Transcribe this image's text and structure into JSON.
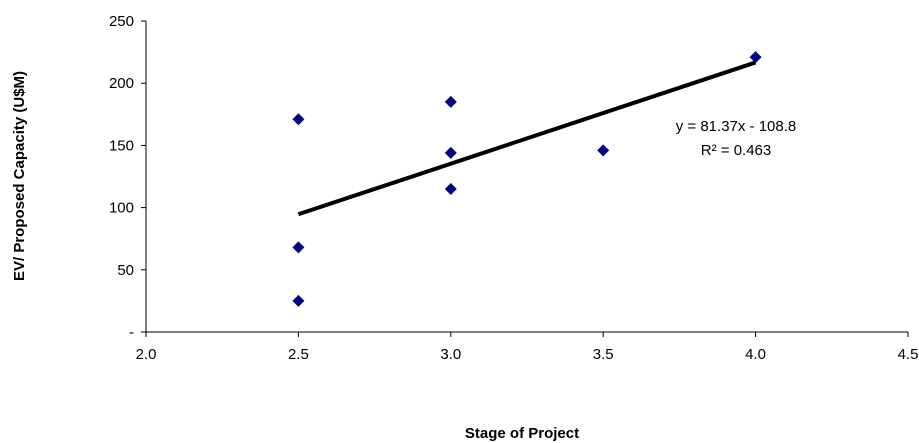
{
  "chart_data": {
    "type": "scatter",
    "title": "",
    "xlabel": "Stage of Project",
    "ylabel": "EV/ Proposed Capacity (U$M)",
    "xlim": [
      2.0,
      4.5
    ],
    "ylim": [
      0,
      250
    ],
    "x_ticks": [
      "2.0",
      "2.5",
      "3.0",
      "3.5",
      "4.0",
      "4.5"
    ],
    "y_ticks": [
      "-",
      "50",
      "100",
      "150",
      "200",
      "250"
    ],
    "grid": false,
    "legend": "none",
    "series": [
      {
        "points": [
          {
            "x": 2.5,
            "y": 171
          },
          {
            "x": 2.5,
            "y": 68
          },
          {
            "x": 2.5,
            "y": 25
          },
          {
            "x": 3.0,
            "y": 185
          },
          {
            "x": 3.0,
            "y": 144
          },
          {
            "x": 3.0,
            "y": 115
          },
          {
            "x": 3.5,
            "y": 146
          },
          {
            "x": 4.0,
            "y": 221
          }
        ],
        "marker": "diamond",
        "color": "#000080"
      }
    ],
    "trendline": {
      "type": "linear",
      "slope": 81.37,
      "intercept": -108.8,
      "x_range": [
        2.5,
        4.0
      ],
      "color": "#000000",
      "equation_label": "y = 81.37x - 108.8",
      "r2_label": "R² = 0.463"
    }
  }
}
